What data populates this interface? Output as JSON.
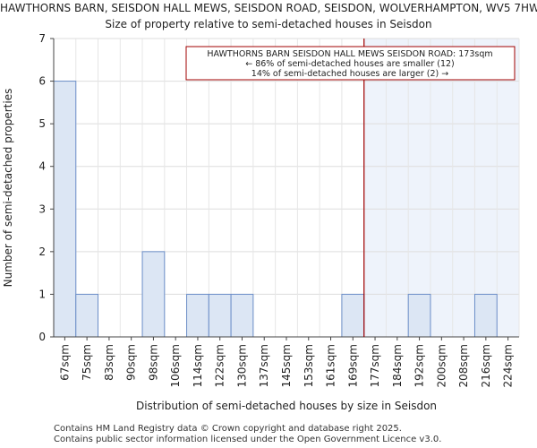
{
  "chart_data": {
    "type": "bar",
    "title": "HAWTHORNS BARN, SEISDON HALL MEWS, SEISDON ROAD, SEISDON, WOLVERHAMPTON, WV5 7HW",
    "subtitle": "Size of property relative to semi-detached houses in Seisdon",
    "xlabel": "Distribution of semi-detached houses by size in Seisdon",
    "ylabel": "Number of semi-detached properties",
    "ylim": [
      0,
      7
    ],
    "yticks": [
      0,
      1,
      2,
      3,
      4,
      5,
      6,
      7
    ],
    "grid": true,
    "categories": [
      "67sqm",
      "75sqm",
      "83sqm",
      "90sqm",
      "98sqm",
      "106sqm",
      "114sqm",
      "122sqm",
      "130sqm",
      "137sqm",
      "145sqm",
      "153sqm",
      "161sqm",
      "169sqm",
      "177sqm",
      "184sqm",
      "192sqm",
      "200sqm",
      "208sqm",
      "216sqm",
      "224sqm"
    ],
    "values": [
      6,
      1,
      0,
      0,
      2,
      0,
      1,
      1,
      1,
      0,
      0,
      0,
      0,
      1,
      0,
      0,
      1,
      0,
      0,
      1,
      0
    ],
    "marker": {
      "value": 173,
      "label": "HAWTHORNS BARN SEISDON HALL MEWS SEISDON ROAD: 173sqm"
    },
    "annotation": [
      "HAWTHORNS BARN SEISDON HALL MEWS SEISDON ROAD: 173sqm",
      "← 86% of semi-detached houses are smaller (12)",
      "14% of semi-detached houses are larger (2) →"
    ],
    "colors": {
      "bar": "#dce6f4",
      "bar_edge": "#6c8ec8",
      "marker": "#a00000",
      "highlight": "#eef3fb"
    }
  },
  "footer": {
    "line1": "Contains HM Land Registry data © Crown copyright and database right 2025.",
    "line2": "Contains public sector information licensed under the Open Government Licence v3.0."
  }
}
